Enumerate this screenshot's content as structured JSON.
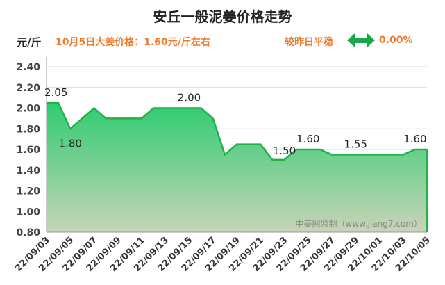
{
  "header": {
    "title": "安丘一般泥姜价格走势",
    "unit": "元/斤",
    "price_note": "10月5日大姜价格：1.60元/斤左右",
    "change_label": "较昨日平稳",
    "change_value": "0.00%",
    "change_icon": "double-arrow-icon"
  },
  "watermark": "中姜网监制（www.jiang7.com）",
  "colors": {
    "line": "#22b14c",
    "area_top": "#2ecc71",
    "area_bottom": "#c8d4b8",
    "accent": "#ee7a2c"
  },
  "chart_data": {
    "type": "area",
    "title": "安丘一般泥姜价格走势",
    "ylabel": "元/斤",
    "ylim": [
      0.8,
      2.4
    ],
    "yticks": [
      "0.80",
      "1.00",
      "1.20",
      "1.40",
      "1.60",
      "1.80",
      "2.00",
      "2.20",
      "2.40"
    ],
    "xticks": [
      "22/09/03",
      "22/09/05",
      "22/09/07",
      "22/09/09",
      "22/09/11",
      "22/09/13",
      "22/09/15",
      "22/09/17",
      "22/09/19",
      "22/09/21",
      "22/09/23",
      "22/09/25",
      "22/09/27",
      "22/09/29",
      "22/10/01",
      "22/10/03",
      "22/10/05"
    ],
    "grid": true,
    "x": [
      "22/09/03",
      "22/09/04",
      "22/09/05",
      "22/09/06",
      "22/09/07",
      "22/09/08",
      "22/09/09",
      "22/09/10",
      "22/09/11",
      "22/09/12",
      "22/09/13",
      "22/09/14",
      "22/09/15",
      "22/09/16",
      "22/09/17",
      "22/09/18",
      "22/09/19",
      "22/09/20",
      "22/09/21",
      "22/09/22",
      "22/09/23",
      "22/09/24",
      "22/09/25",
      "22/09/26",
      "22/09/27",
      "22/09/28",
      "22/09/29",
      "22/09/30",
      "22/10/01",
      "22/10/02",
      "22/10/03",
      "22/10/04",
      "22/10/05"
    ],
    "values": [
      2.05,
      2.05,
      1.8,
      1.9,
      2.0,
      1.9,
      1.9,
      1.9,
      1.9,
      2.0,
      2.0,
      2.0,
      2.0,
      2.0,
      1.9,
      1.55,
      1.65,
      1.65,
      1.65,
      1.5,
      1.5,
      1.6,
      1.6,
      1.6,
      1.55,
      1.55,
      1.55,
      1.55,
      1.55,
      1.55,
      1.55,
      1.6,
      1.6
    ],
    "annotations": [
      {
        "x": "22/09/03",
        "text": "2.05"
      },
      {
        "x": "22/09/05",
        "text": "1.80"
      },
      {
        "x": "22/09/15",
        "text": "2.00"
      },
      {
        "x": "22/09/23",
        "text": "1.50"
      },
      {
        "x": "22/09/25",
        "text": "1.60"
      },
      {
        "x": "22/09/29",
        "text": "1.55"
      },
      {
        "x": "22/10/04",
        "text": "1.60"
      }
    ]
  }
}
